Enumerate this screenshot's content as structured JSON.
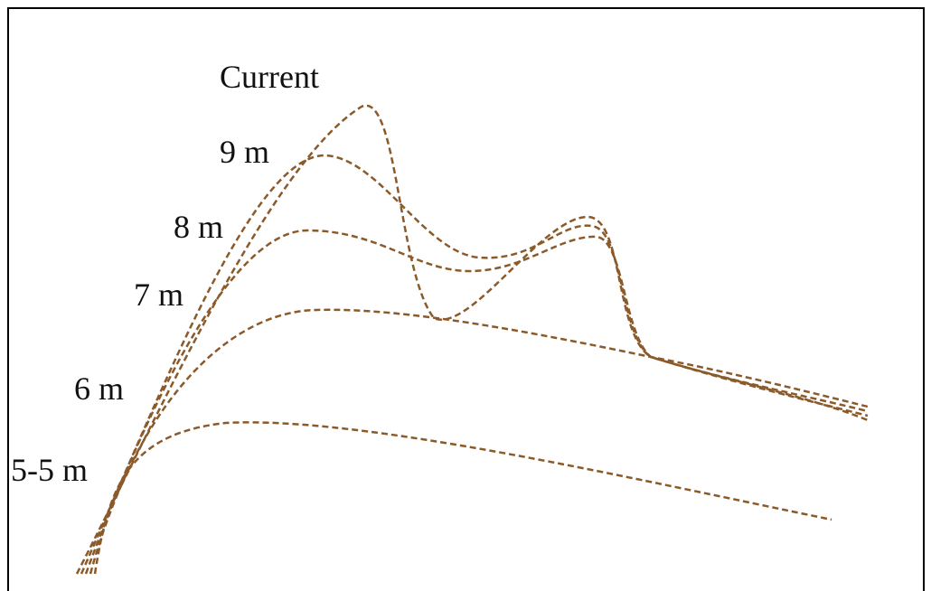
{
  "labels": {
    "current": "Current",
    "nine": "9 m",
    "eight": "8 m",
    "seven": "7 m",
    "six": "6 m",
    "five_five": "5-5 m"
  }
}
